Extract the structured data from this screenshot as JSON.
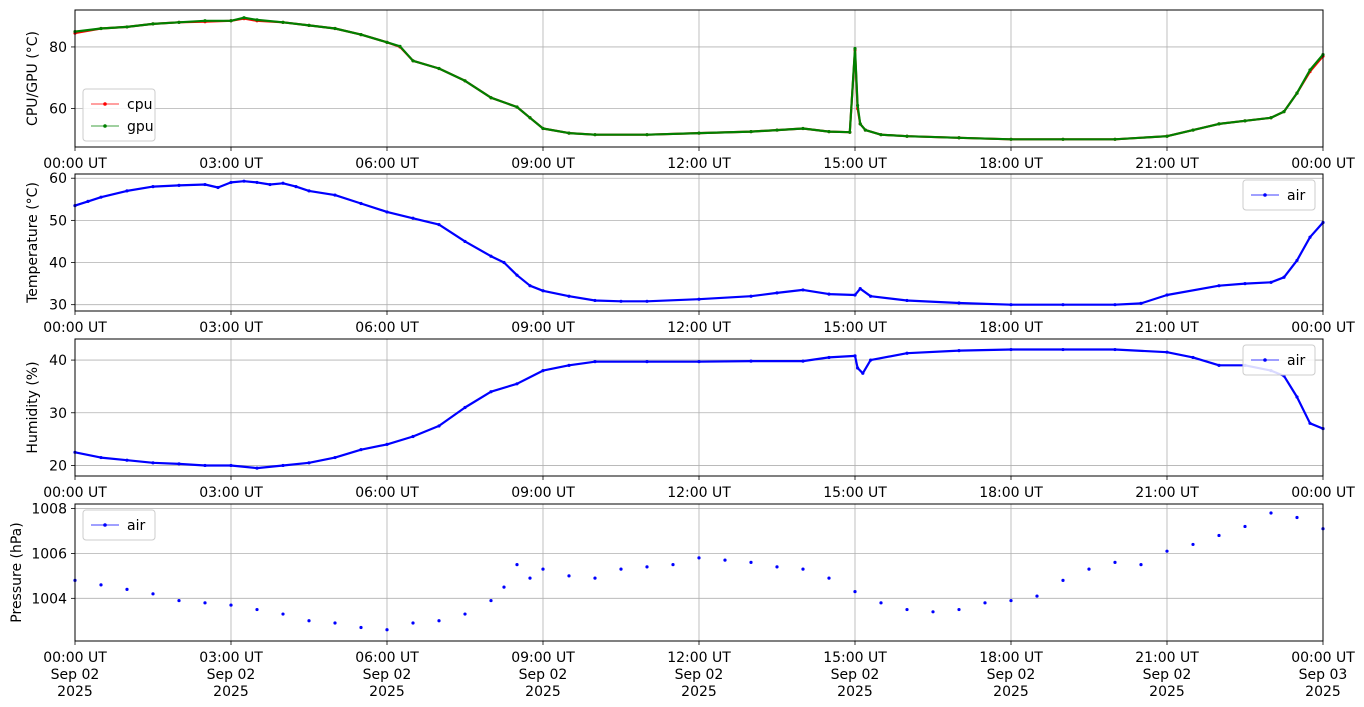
{
  "chart_data": [
    {
      "type": "line",
      "ylabel": "CPU/GPU (°C)",
      "ylim": [
        47.5,
        92
      ],
      "yticks": [
        60,
        80
      ],
      "xlim_hours": [
        0,
        24
      ],
      "xticks": [
        "00:00 UT",
        "03:00 UT",
        "06:00 UT",
        "09:00 UT",
        "12:00 UT",
        "15:00 UT",
        "18:00 UT",
        "21:00 UT",
        "00:00 UT"
      ],
      "grid": true,
      "legend_position": "lower-left",
      "series": [
        {
          "name": "cpu",
          "color": "#ff0000",
          "x_hours": [
            0,
            0.5,
            1,
            1.5,
            2,
            2.5,
            3,
            3.25,
            3.5,
            4,
            4.5,
            5,
            5.5,
            6,
            6.25,
            6.5,
            7,
            7.5,
            8,
            8.5,
            8.75,
            9,
            9.5,
            10,
            11,
            12,
            13,
            13.5,
            14,
            14.5,
            14.9,
            15.0,
            15.05,
            15.1,
            15.2,
            15.5,
            16,
            17,
            18,
            19,
            20,
            21,
            21.5,
            22,
            22.5,
            23,
            23.25,
            23.5,
            23.75,
            24
          ],
          "values": [
            84.5,
            86,
            86.5,
            87.5,
            88,
            88.2,
            88.5,
            89.2,
            88.5,
            88,
            87,
            86,
            84,
            81.5,
            80,
            75.5,
            73,
            69,
            63.5,
            60.5,
            57,
            53.5,
            52,
            51.5,
            51.5,
            52,
            52.5,
            53,
            53.5,
            52.5,
            52.3,
            79,
            60,
            55,
            53,
            51.5,
            51,
            50.5,
            50,
            50,
            50,
            51,
            53,
            55,
            56,
            57,
            59,
            65,
            72,
            77
          ]
        },
        {
          "name": "gpu",
          "color": "#008000",
          "x_hours": [
            0,
            0.5,
            1,
            1.5,
            2,
            2.5,
            3,
            3.25,
            3.5,
            4,
            4.5,
            5,
            5.5,
            6,
            6.25,
            6.5,
            7,
            7.5,
            8,
            8.5,
            8.75,
            9,
            9.5,
            10,
            11,
            12,
            13,
            13.5,
            14,
            14.5,
            14.9,
            15.0,
            15.05,
            15.1,
            15.2,
            15.5,
            16,
            17,
            18,
            19,
            20,
            21,
            21.5,
            22,
            22.5,
            23,
            23.25,
            23.5,
            23.75,
            24
          ],
          "values": [
            85,
            86,
            86.5,
            87.5,
            88,
            88.5,
            88.5,
            89.5,
            88.8,
            88,
            87,
            86,
            84,
            81.5,
            80.2,
            75.5,
            73,
            69,
            63.5,
            60.5,
            57,
            53.5,
            52,
            51.5,
            51.5,
            52,
            52.5,
            53,
            53.5,
            52.5,
            52.3,
            79.5,
            61,
            55,
            53,
            51.5,
            51,
            50.5,
            50,
            50,
            50,
            51,
            53,
            55,
            56,
            57,
            59,
            65,
            72.5,
            77.5
          ]
        }
      ]
    },
    {
      "type": "line",
      "ylabel": "Temperature (°C)",
      "ylim": [
        28.5,
        61
      ],
      "yticks": [
        30,
        40,
        50,
        60
      ],
      "xlim_hours": [
        0,
        24
      ],
      "xticks": [
        "00:00 UT",
        "03:00 UT",
        "06:00 UT",
        "09:00 UT",
        "12:00 UT",
        "15:00 UT",
        "18:00 UT",
        "21:00 UT",
        "00:00 UT"
      ],
      "grid": true,
      "legend_position": "upper-right",
      "series": [
        {
          "name": "air",
          "color": "#0000ff",
          "x_hours": [
            0,
            0.25,
            0.5,
            1,
            1.5,
            2,
            2.5,
            2.75,
            3,
            3.25,
            3.5,
            3.75,
            4,
            4.25,
            4.5,
            5,
            5.5,
            6,
            6.5,
            7,
            7.5,
            8,
            8.25,
            8.5,
            8.75,
            9,
            9.5,
            10,
            10.5,
            11,
            12,
            13,
            13.5,
            14,
            14.5,
            15,
            15.1,
            15.3,
            16,
            17,
            18,
            19,
            20,
            20.5,
            21,
            22,
            22.5,
            23,
            23.25,
            23.5,
            23.75,
            24
          ],
          "values": [
            53.5,
            54.5,
            55.5,
            57,
            58,
            58.3,
            58.5,
            57.8,
            59,
            59.3,
            59,
            58.5,
            58.8,
            58,
            57,
            56,
            54,
            52,
            50.5,
            49,
            45,
            41.5,
            40,
            37,
            34.5,
            33.3,
            32,
            31,
            30.8,
            30.8,
            31.3,
            32,
            32.8,
            33.5,
            32.5,
            32.3,
            33.8,
            32,
            31,
            30.4,
            30,
            30,
            30,
            30.3,
            32.3,
            34.5,
            35,
            35.3,
            36.5,
            40.5,
            46,
            49.5
          ]
        }
      ]
    },
    {
      "type": "line",
      "ylabel": "Humidity (%)",
      "ylim": [
        18,
        44
      ],
      "yticks": [
        20,
        30,
        40
      ],
      "xlim_hours": [
        0,
        24
      ],
      "xticks": [
        "00:00 UT",
        "03:00 UT",
        "06:00 UT",
        "09:00 UT",
        "12:00 UT",
        "15:00 UT",
        "18:00 UT",
        "21:00 UT",
        "00:00 UT"
      ],
      "grid": true,
      "legend_position": "upper-right",
      "series": [
        {
          "name": "air",
          "color": "#0000ff",
          "x_hours": [
            0,
            0.5,
            1,
            1.5,
            2,
            2.5,
            3,
            3.5,
            4,
            4.5,
            5,
            5.5,
            6,
            6.5,
            7,
            7.5,
            8,
            8.5,
            9,
            9.5,
            10,
            11,
            12,
            13,
            14,
            14.5,
            15,
            15.05,
            15.15,
            15.3,
            16,
            17,
            18,
            19,
            20,
            21,
            21.5,
            22,
            22.5,
            23,
            23.25,
            23.5,
            23.75,
            24
          ],
          "values": [
            22.5,
            21.5,
            21,
            20.5,
            20.3,
            20,
            20,
            19.5,
            20,
            20.5,
            21.5,
            23,
            24,
            25.5,
            27.5,
            31,
            34,
            35.5,
            38,
            39,
            39.7,
            39.7,
            39.7,
            39.8,
            39.8,
            40.5,
            40.8,
            38.5,
            37.5,
            40,
            41.3,
            41.8,
            42,
            42,
            42,
            41.5,
            40.5,
            39,
            39,
            38,
            37,
            33,
            28,
            27
          ]
        }
      ]
    },
    {
      "type": "scatter",
      "ylabel": "Pressure (hPa)",
      "ylim": [
        1002.1,
        1008.2
      ],
      "yticks": [
        1004,
        1006,
        1008
      ],
      "xlim_hours": [
        0,
        24
      ],
      "xticks": [
        [
          "00:00 UT",
          "Sep 02",
          "2025"
        ],
        [
          "03:00 UT",
          "Sep 02",
          "2025"
        ],
        [
          "06:00 UT",
          "Sep 02",
          "2025"
        ],
        [
          "09:00 UT",
          "Sep 02",
          "2025"
        ],
        [
          "12:00 UT",
          "Sep 02",
          "2025"
        ],
        [
          "15:00 UT",
          "Sep 02",
          "2025"
        ],
        [
          "18:00 UT",
          "Sep 02",
          "2025"
        ],
        [
          "21:00 UT",
          "Sep 02",
          "2025"
        ],
        [
          "00:00 UT",
          "Sep 03",
          "2025"
        ]
      ],
      "grid": true,
      "legend_position": "upper-left",
      "series": [
        {
          "name": "air",
          "color": "#0000ff",
          "x_hours": [
            0,
            0.5,
            1,
            1.5,
            2,
            2.5,
            3,
            3.5,
            4,
            4.5,
            5,
            5.5,
            6,
            6.5,
            7,
            7.5,
            8,
            8.25,
            8.5,
            8.75,
            9,
            9.5,
            10,
            10.5,
            11,
            11.5,
            12,
            12.5,
            13,
            13.5,
            14,
            14.5,
            15,
            15.5,
            16,
            16.5,
            17,
            17.5,
            18,
            18.5,
            19,
            19.5,
            20,
            20.5,
            21,
            21.5,
            22,
            22.5,
            23,
            23.5,
            24
          ],
          "values": [
            1004.8,
            1004.6,
            1004.4,
            1004.2,
            1003.9,
            1003.8,
            1003.7,
            1003.5,
            1003.3,
            1003.0,
            1002.9,
            1002.7,
            1002.6,
            1002.9,
            1003.0,
            1003.3,
            1003.9,
            1004.5,
            1005.5,
            1004.9,
            1005.3,
            1005.0,
            1004.9,
            1005.3,
            1005.4,
            1005.5,
            1005.8,
            1005.7,
            1005.6,
            1005.4,
            1005.3,
            1004.9,
            1004.3,
            1003.8,
            1003.5,
            1003.4,
            1003.5,
            1003.8,
            1003.9,
            1004.1,
            1004.8,
            1005.3,
            1005.6,
            1005.5,
            1006.1,
            1006.4,
            1006.8,
            1007.2,
            1007.8,
            1007.6,
            1007.1
          ]
        }
      ]
    }
  ]
}
